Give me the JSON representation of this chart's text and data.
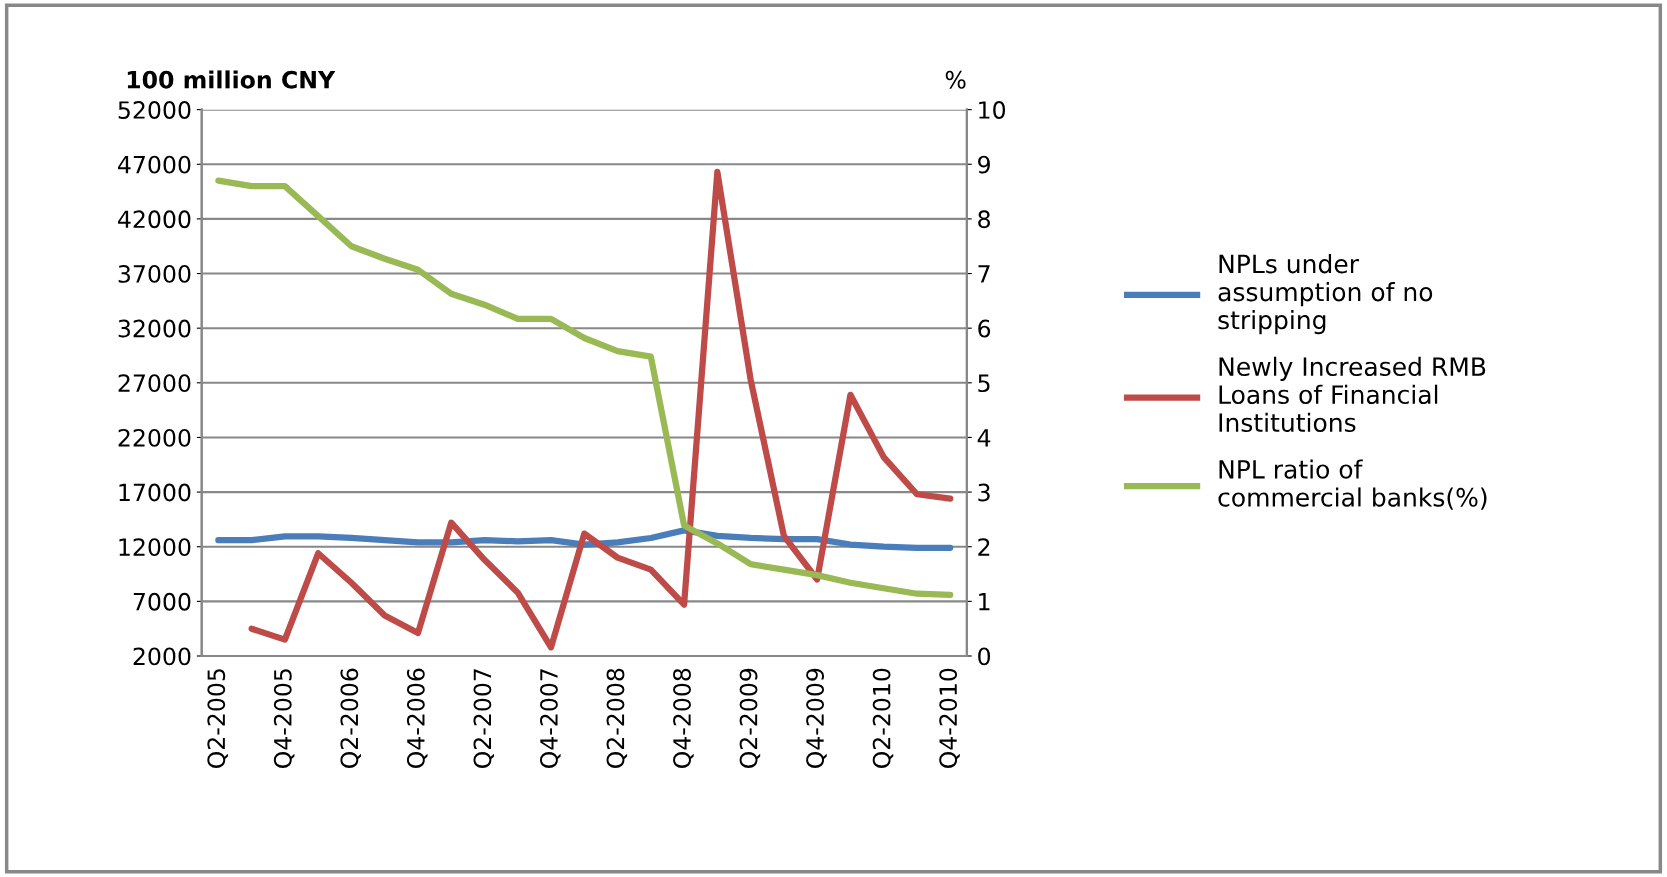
{
  "chart_data": {
    "type": "line",
    "categories": [
      "Q2-2005",
      null,
      "Q4-2005",
      null,
      "Q2-2006",
      null,
      "Q4-2006",
      null,
      "Q2-2007",
      null,
      "Q4-2007",
      null,
      "Q2-2008",
      null,
      "Q4-2008",
      null,
      "Q2-2009",
      null,
      "Q4-2009",
      null,
      "Q2-2010",
      null,
      "Q4-2010"
    ],
    "ylabel": "100 million CNY",
    "y2label": "%",
    "ylim": [
      2000,
      52000
    ],
    "yticks": [
      2000,
      7000,
      12000,
      17000,
      22000,
      27000,
      32000,
      37000,
      42000,
      47000,
      52000
    ],
    "y2lim": [
      0,
      10
    ],
    "y2ticks": [
      0,
      1,
      2,
      3,
      4,
      5,
      6,
      7,
      8,
      9,
      10
    ],
    "grid": "y",
    "legend": "right",
    "marker": "none",
    "line_style": "solid",
    "series": [
      {
        "name": "NPLs under\nassumption of no\nstripping",
        "color": "#4a7ebb",
        "values": [
          12600,
          12600,
          12950,
          12950,
          12800,
          12600,
          12400,
          12400,
          12600,
          12500,
          12600,
          12200,
          12400,
          12800,
          13500,
          13000,
          12800,
          12700,
          12700,
          12200,
          12000,
          11900,
          11900
        ]
      },
      {
        "name": "Newly Increased RMB\nLoans of Financial\nInstitutions",
        "color": "#be4b48",
        "values": [
          null,
          4500,
          3500,
          11400,
          8700,
          5700,
          4100,
          14200,
          10800,
          7800,
          2800,
          13200,
          11000,
          9900,
          6700,
          46300,
          27300,
          13000,
          9000,
          25900,
          20200,
          16800,
          16400
        ]
      },
      {
        "name": "NPL ratio of\ncommercial banks(%)",
        "color": "#98b954",
        "axis": "y2",
        "values": [
          8.7,
          8.6,
          8.6,
          8.05,
          7.5,
          7.27,
          7.07,
          6.63,
          6.43,
          6.17,
          6.17,
          5.82,
          5.58,
          5.48,
          2.39,
          2.06,
          1.68,
          1.58,
          1.48,
          1.34,
          1.24,
          1.14,
          1.12
        ]
      }
    ]
  }
}
